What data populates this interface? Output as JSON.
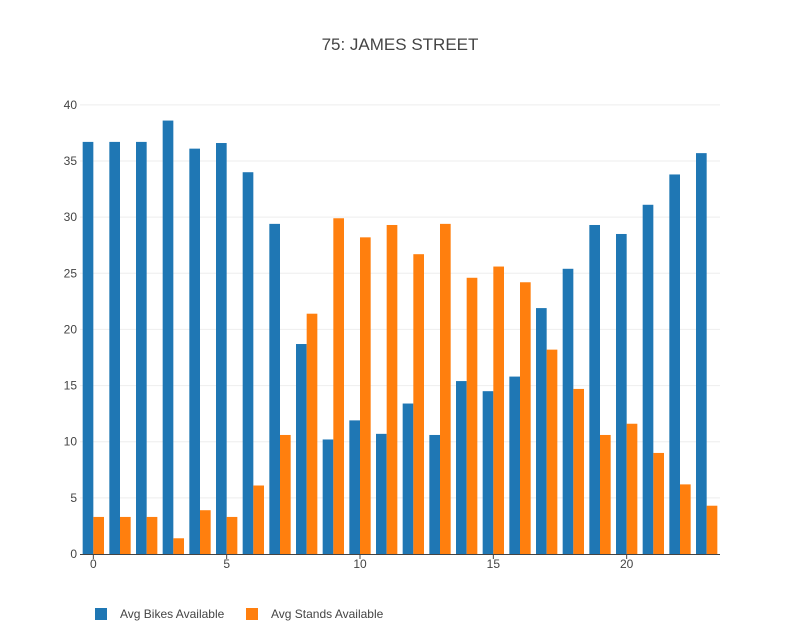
{
  "chart_data": {
    "type": "bar",
    "title": "75: JAMES STREET",
    "xlabel": "",
    "ylabel": "",
    "x": [
      0,
      1,
      2,
      3,
      4,
      5,
      6,
      7,
      8,
      9,
      10,
      11,
      12,
      13,
      14,
      15,
      16,
      17,
      18,
      19,
      20,
      21,
      22,
      23
    ],
    "xticks": [
      0,
      5,
      10,
      15,
      20
    ],
    "yticks": [
      0,
      5,
      10,
      15,
      20,
      25,
      30,
      35,
      40
    ],
    "ylim": [
      0,
      41.5
    ],
    "xlim": [
      -0.5,
      23.5
    ],
    "grid": true,
    "legend_position": "bottom-left",
    "series": [
      {
        "name": "Avg Bikes Available",
        "color": "#1f77b4",
        "values": [
          36.7,
          36.7,
          36.7,
          38.6,
          36.1,
          36.6,
          34.0,
          29.4,
          18.7,
          10.2,
          11.9,
          10.7,
          13.4,
          10.6,
          15.4,
          14.5,
          15.8,
          21.9,
          25.4,
          29.3,
          28.5,
          31.1,
          33.8,
          35.7
        ]
      },
      {
        "name": "Avg Stands Available",
        "color": "#ff7f0e",
        "values": [
          3.3,
          3.3,
          3.3,
          1.4,
          3.9,
          3.3,
          6.1,
          10.6,
          21.4,
          29.9,
          28.2,
          29.3,
          26.7,
          29.4,
          24.6,
          25.6,
          24.2,
          18.2,
          14.7,
          10.6,
          11.6,
          9.0,
          6.2,
          4.3
        ]
      }
    ]
  }
}
